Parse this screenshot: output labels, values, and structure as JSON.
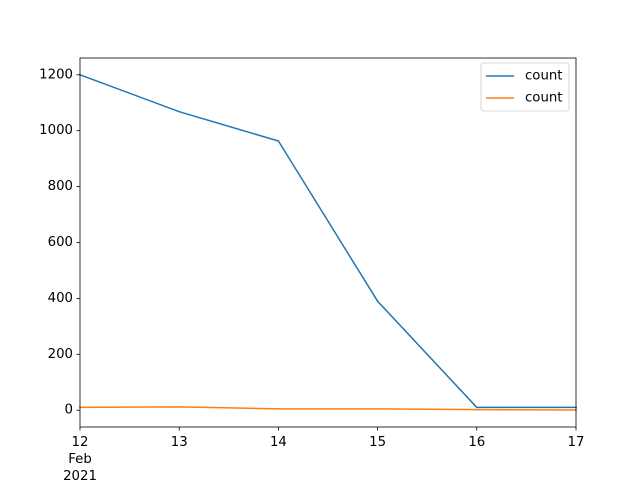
{
  "chart_data": {
    "type": "line",
    "x": [
      "2021-02-12",
      "2021-02-13",
      "2021-02-14",
      "2021-02-15",
      "2021-02-16",
      "2021-02-17"
    ],
    "x_tick_labels": [
      "12",
      "13",
      "14",
      "15",
      "16",
      "17"
    ],
    "x_secondary_label": [
      "Feb",
      "2021"
    ],
    "series": [
      {
        "name": "count",
        "color": "#1f77b4",
        "values": [
          1200,
          1068,
          963,
          390,
          10,
          10
        ]
      },
      {
        "name": "count",
        "color": "#ff7f0e",
        "values": [
          10,
          12,
          5,
          5,
          2,
          1
        ]
      }
    ],
    "ylim": [
      -60,
      1260
    ],
    "y_ticks": [
      0,
      200,
      400,
      600,
      800,
      1000,
      1200
    ],
    "title": "",
    "xlabel": "",
    "ylabel": "",
    "grid": false,
    "legend_position": "top-right"
  }
}
